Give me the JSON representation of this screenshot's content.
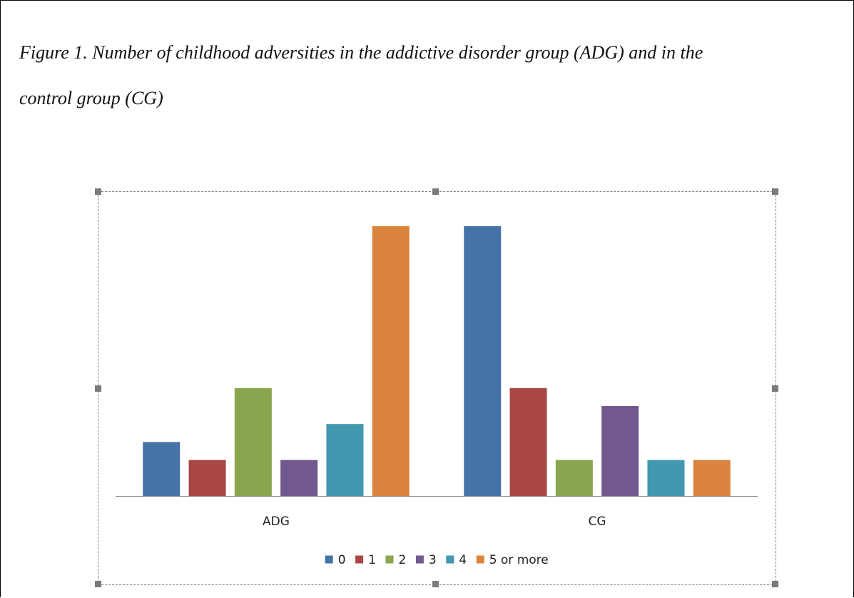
{
  "caption": {
    "line1": "Figure 1. Number of childhood adversities in the addictive disorder group (ADG) and in the",
    "line2": "control group (CG)"
  },
  "chart_data": {
    "type": "bar",
    "categories": [
      "ADG",
      "CG"
    ],
    "series": [
      {
        "name": "0",
        "color": "#4572A7",
        "values": [
          3,
          15
        ]
      },
      {
        "name": "1",
        "color": "#AA4643",
        "values": [
          2,
          6
        ]
      },
      {
        "name": "2",
        "color": "#89A54E",
        "values": [
          6,
          2
        ]
      },
      {
        "name": "3",
        "color": "#71588F",
        "values": [
          2,
          5
        ]
      },
      {
        "name": "4",
        "color": "#4198AF",
        "values": [
          4,
          2
        ]
      },
      {
        "name": "5 or more",
        "color": "#DB843D",
        "values": [
          15,
          2
        ]
      }
    ],
    "ylim": [
      0,
      15
    ],
    "grid": false,
    "y_axis_visible": false,
    "legend_position": "bottom"
  }
}
